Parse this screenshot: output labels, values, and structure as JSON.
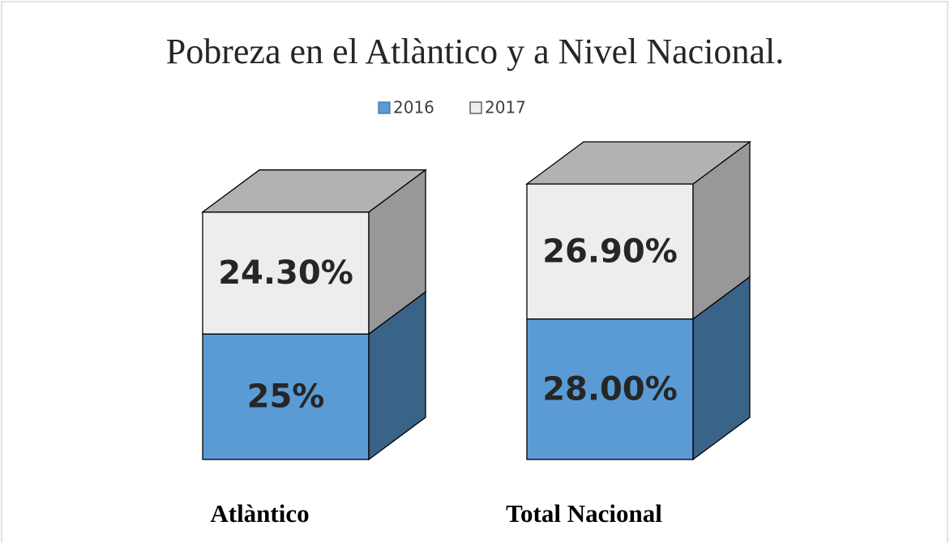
{
  "chart_data": {
    "type": "bar3d_stacked",
    "title": "Pobreza en el Atlàntico y a Nivel Nacional.",
    "categories": [
      "Atlàntico",
      "Total Nacional"
    ],
    "series": [
      {
        "name": "2016",
        "color": "#5b9bd5",
        "values": [
          25,
          28
        ],
        "value_labels": [
          "25%",
          "28.00%"
        ]
      },
      {
        "name": "2017",
        "color": "#ededed",
        "values": [
          24.3,
          26.9
        ],
        "value_labels": [
          "24.30%",
          "26.90%"
        ]
      }
    ],
    "legend": "top"
  }
}
